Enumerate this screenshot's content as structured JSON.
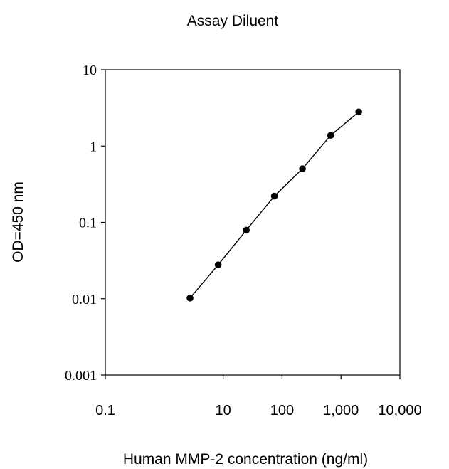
{
  "chart_data": {
    "type": "scatter",
    "title": "Assay Diluent",
    "xlabel": "Human MMP-2 concentration (ng/ml)",
    "ylabel": "OD=450 nm",
    "x_scale": "log",
    "y_scale": "log",
    "xlim": [
      0.1,
      10000
    ],
    "ylim": [
      0.001,
      10
    ],
    "x_ticks": [
      {
        "value": 0.1,
        "label": "0.1"
      },
      {
        "value": 10,
        "label": "10"
      },
      {
        "value": 100,
        "label": "100"
      },
      {
        "value": 1000,
        "label": "1,000"
      },
      {
        "value": 10000,
        "label": "10,000"
      }
    ],
    "y_ticks": [
      {
        "value": 10,
        "label": "10"
      },
      {
        "value": 1,
        "label": "1"
      },
      {
        "value": 0.1,
        "label": "0.1"
      },
      {
        "value": 0.01,
        "label": "0.01"
      },
      {
        "value": 0.001,
        "label": "0.001"
      }
    ],
    "grid": false,
    "legend": "none",
    "series": [
      {
        "x": [
          2.74,
          8.23,
          24.7,
          74.1,
          222,
          667,
          2000
        ],
        "y": [
          0.0102,
          0.0278,
          0.079,
          0.221,
          0.505,
          1.38,
          2.8
        ],
        "line": true,
        "marker": "filled-circle",
        "color": "#000000"
      }
    ]
  }
}
